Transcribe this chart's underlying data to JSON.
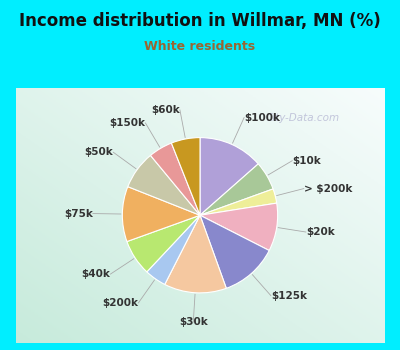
{
  "title": "Income distribution in Willmar, MN (%)",
  "subtitle": "White residents",
  "title_color": "#111111",
  "subtitle_color": "#996633",
  "background_cyan": "#00eeff",
  "background_chart_color": "#d8efe8",
  "watermark": "City-Data.com",
  "slices": [
    {
      "label": "$100k",
      "value": 13.5,
      "color": "#b0a0d8"
    },
    {
      "label": "$10k",
      "value": 6.0,
      "color": "#a8c898"
    },
    {
      "label": "> $200k",
      "value": 3.0,
      "color": "#eeee99"
    },
    {
      "label": "$20k",
      "value": 10.0,
      "color": "#f0b0c0"
    },
    {
      "label": "$125k",
      "value": 12.0,
      "color": "#8888cc"
    },
    {
      "label": "$30k",
      "value": 13.0,
      "color": "#f5c8a0"
    },
    {
      "label": "$200k",
      "value": 4.5,
      "color": "#a8c8f0"
    },
    {
      "label": "$40k",
      "value": 7.5,
      "color": "#b8e870"
    },
    {
      "label": "$75k",
      "value": 11.5,
      "color": "#f0b060"
    },
    {
      "label": "$50k",
      "value": 8.0,
      "color": "#c8c8a8"
    },
    {
      "label": "$150k",
      "value": 5.0,
      "color": "#e89898"
    },
    {
      "label": "$60k",
      "value": 6.0,
      "color": "#c89820"
    }
  ],
  "label_fontsize": 7.5,
  "label_color": "#333333",
  "figsize": [
    4.0,
    3.5
  ],
  "dpi": 100,
  "title_fontsize": 12,
  "subtitle_fontsize": 9
}
